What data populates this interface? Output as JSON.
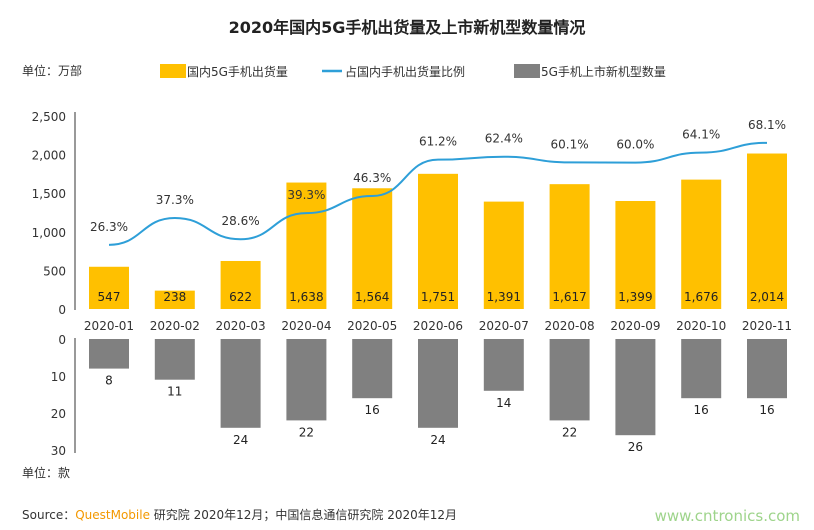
{
  "chart_data": {
    "title": "2020年国内5G手机出货量及上市新机型数量情况",
    "unit_top": "单位：万部",
    "unit_bottom": "单位：款",
    "legend": [
      "国内5G手机出货量",
      "占国内手机出货量比例",
      "5G手机上市新机型数量"
    ],
    "legend_placement": "top",
    "categories": [
      "2020-01",
      "2020-02",
      "2020-03",
      "2020-04",
      "2020-05",
      "2020-06",
      "2020-07",
      "2020-08",
      "2020-09",
      "2020-10",
      "2020-11"
    ],
    "series": [
      {
        "name": "国内5G手机出货量",
        "type": "bar",
        "values": [
          547,
          238,
          622,
          1638,
          1564,
          1751,
          1391,
          1617,
          1399,
          1676,
          2014
        ],
        "labels": [
          "547",
          "238",
          "622",
          "1,638",
          "1,564",
          "1,751",
          "1,391",
          "1,617",
          "1,399",
          "1,676",
          "2,014"
        ]
      },
      {
        "name": "占国内手机出货量比例",
        "type": "line",
        "values": [
          26.3,
          37.3,
          28.6,
          39.3,
          46.3,
          61.2,
          62.4,
          60.1,
          60.0,
          64.1,
          68.1
        ],
        "labels": [
          "26.3%",
          "37.3%",
          "28.6%",
          "39.3%",
          "46.3%",
          "61.2%",
          "62.4%",
          "60.1%",
          "60.0%",
          "64.1%",
          "68.1%"
        ]
      },
      {
        "name": "5G手机上市新机型数量",
        "type": "bar",
        "values": [
          8,
          11,
          24,
          22,
          16,
          24,
          14,
          22,
          26,
          16,
          16
        ]
      }
    ],
    "y_top": {
      "range": [
        0,
        2500
      ],
      "ticks": [
        "0",
        "500",
        "1,000",
        "1,500",
        "2,000",
        "2,500"
      ]
    },
    "y_bottom": {
      "range": [
        0,
        30
      ],
      "ticks": [
        "0",
        "10",
        "20",
        "30"
      ],
      "inverted": true
    },
    "colors": {
      "bar_top": "#FFC000",
      "line": "#2E9FD8",
      "bar_bottom": "#808080"
    },
    "grid": false
  },
  "source": {
    "prefix": "Source：",
    "brand": "QuestMobile",
    "rest": " 研究院 2020年12月；中国信息通信研究院 2020年12月",
    "brand_color": "#F39800"
  },
  "watermark": "www.cntronics.com"
}
